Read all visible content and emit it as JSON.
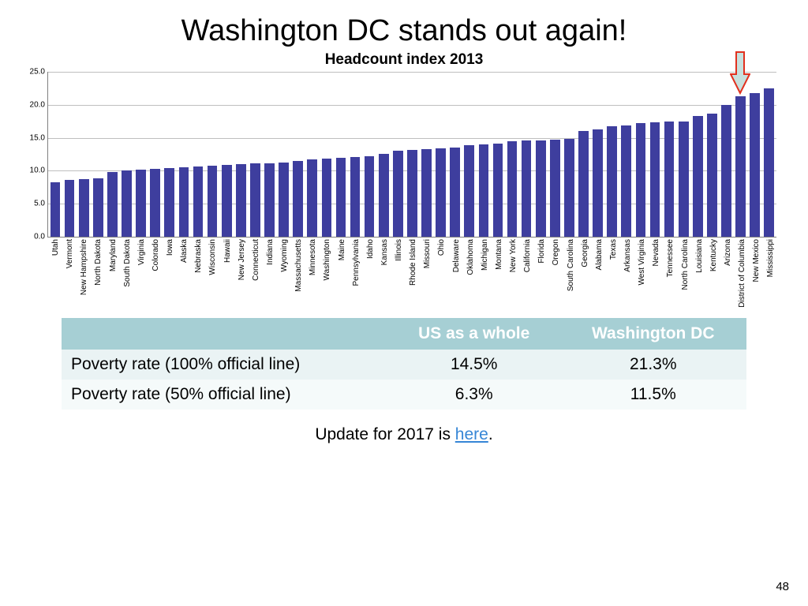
{
  "slide_title": "Washington DC stands out again!",
  "chart": {
    "type": "bar",
    "title": "Headcount index 2013",
    "title_fontsize": 19,
    "ylim": [
      0,
      25
    ],
    "ytick_step": 5,
    "ytick_labels": [
      "0.0",
      "5.0",
      "10.0",
      "15.0",
      "20.0",
      "25.0"
    ],
    "grid_color": "#bfbfbf",
    "axis_color": "#808080",
    "background_color": "#ffffff",
    "bar_color": "#3e3e9e",
    "bar_width": 0.7,
    "xlabel_fontsize": 10,
    "ylabel_fontsize": 10,
    "categories": [
      "Utah",
      "Vermont",
      "New Hampshire",
      "North Dakota",
      "Maryland",
      "South Dakota",
      "Virginia",
      "Colorado",
      "Iowa",
      "Alaska",
      "Nebraska",
      "Wisconsin",
      "Hawaii",
      "New Jersey",
      "Connecticut",
      "Indiana",
      "Wyoming",
      "Massachusetts",
      "Minnesota",
      "Washington",
      "Maine",
      "Pennsylvania",
      "Idaho",
      "Kansas",
      "Illinois",
      "Rhode Island",
      "Missouri",
      "Ohio",
      "Delaware",
      "Oklahoma",
      "Michigan",
      "Montana",
      "New York",
      "California",
      "Florida",
      "Oregon",
      "South Carolina",
      "Georgia",
      "Alabama",
      "Texas",
      "Arkansas",
      "West Virginia",
      "Nevada",
      "Tennessee",
      "North Carolina",
      "Louisiana",
      "Kentucky",
      "Arizona",
      "District of Columbia",
      "New Mexico",
      "Mississippi"
    ],
    "values": [
      8.2,
      8.6,
      8.7,
      8.8,
      9.8,
      10.0,
      10.2,
      10.3,
      10.4,
      10.5,
      10.7,
      10.8,
      10.9,
      11.0,
      11.1,
      11.1,
      11.3,
      11.5,
      11.7,
      11.9,
      12.0,
      12.1,
      12.2,
      12.6,
      13.0,
      13.1,
      13.3,
      13.4,
      13.5,
      13.9,
      14.0,
      14.1,
      14.5,
      14.6,
      14.6,
      14.7,
      14.8,
      16.0,
      16.3,
      16.7,
      16.9,
      17.2,
      17.4,
      17.5,
      17.5,
      18.3,
      18.7,
      20.0,
      21.3,
      21.8,
      22.5
    ],
    "arrow": {
      "target_category_index": 48,
      "stroke_color": "#e1301e",
      "fill_color": "#c7e0dd",
      "stroke_width": 2
    }
  },
  "table": {
    "header_bg": "#a6cfd4",
    "header_fg": "#ffffff",
    "row_odd_bg": "#eaf3f4",
    "row_even_bg": "#f5fafa",
    "fontsize": 21,
    "columns": [
      "",
      "US as a whole",
      "Washington DC"
    ],
    "rows": [
      [
        "Poverty rate (100% official line)",
        "14.5%",
        "21.3%"
      ],
      [
        "Poverty rate (50% official line)",
        "6.3%",
        "11.5%"
      ]
    ]
  },
  "footnote": {
    "prefix": "Update for 2017 is ",
    "link_text": "here",
    "suffix": "."
  },
  "page_number": "48"
}
